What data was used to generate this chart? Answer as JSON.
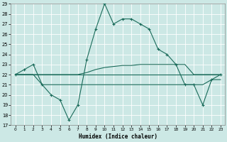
{
  "xlabel": "Humidex (Indice chaleur)",
  "x": [
    0,
    1,
    2,
    3,
    4,
    5,
    6,
    7,
    8,
    9,
    10,
    11,
    12,
    13,
    14,
    15,
    16,
    17,
    18,
    19,
    20,
    21,
    22,
    23
  ],
  "line_curve": [
    22,
    22.5,
    23,
    21,
    20,
    19.5,
    17.5,
    19,
    23.5,
    26.5,
    29,
    27,
    27.5,
    27.5,
    27,
    26.5,
    24.5,
    24,
    23,
    21,
    21,
    19,
    21.5,
    22
  ],
  "line_rising": [
    22,
    22,
    22,
    22,
    22,
    22,
    22,
    22,
    22.2,
    22.5,
    22.7,
    22.8,
    22.9,
    22.9,
    23.0,
    23.0,
    23.0,
    23.0,
    23.0,
    23.0,
    22.0,
    22.0,
    22.0,
    22.0
  ],
  "line_flat_top": [
    22,
    22,
    22,
    22,
    22,
    22,
    22,
    22,
    22,
    22,
    22,
    22,
    22,
    22,
    22,
    22,
    22,
    22,
    22,
    22,
    22,
    22,
    22,
    22
  ],
  "line_flat_low": [
    22,
    22,
    22,
    21,
    21,
    21,
    21,
    21,
    21,
    21,
    21,
    21,
    21,
    21,
    21,
    21,
    21,
    21,
    21,
    21,
    21,
    21,
    21.5,
    21.5
  ],
  "bg_color": "#cce8e5",
  "grid_color": "#b0d4d0",
  "line_color": "#1a6b5a",
  "ylim": [
    17,
    29
  ],
  "yticks": [
    17,
    18,
    19,
    20,
    21,
    22,
    23,
    24,
    25,
    26,
    27,
    28,
    29
  ],
  "xticks": [
    0,
    1,
    2,
    3,
    4,
    5,
    6,
    7,
    8,
    9,
    10,
    11,
    12,
    13,
    14,
    15,
    16,
    17,
    18,
    19,
    20,
    21,
    22,
    23
  ]
}
